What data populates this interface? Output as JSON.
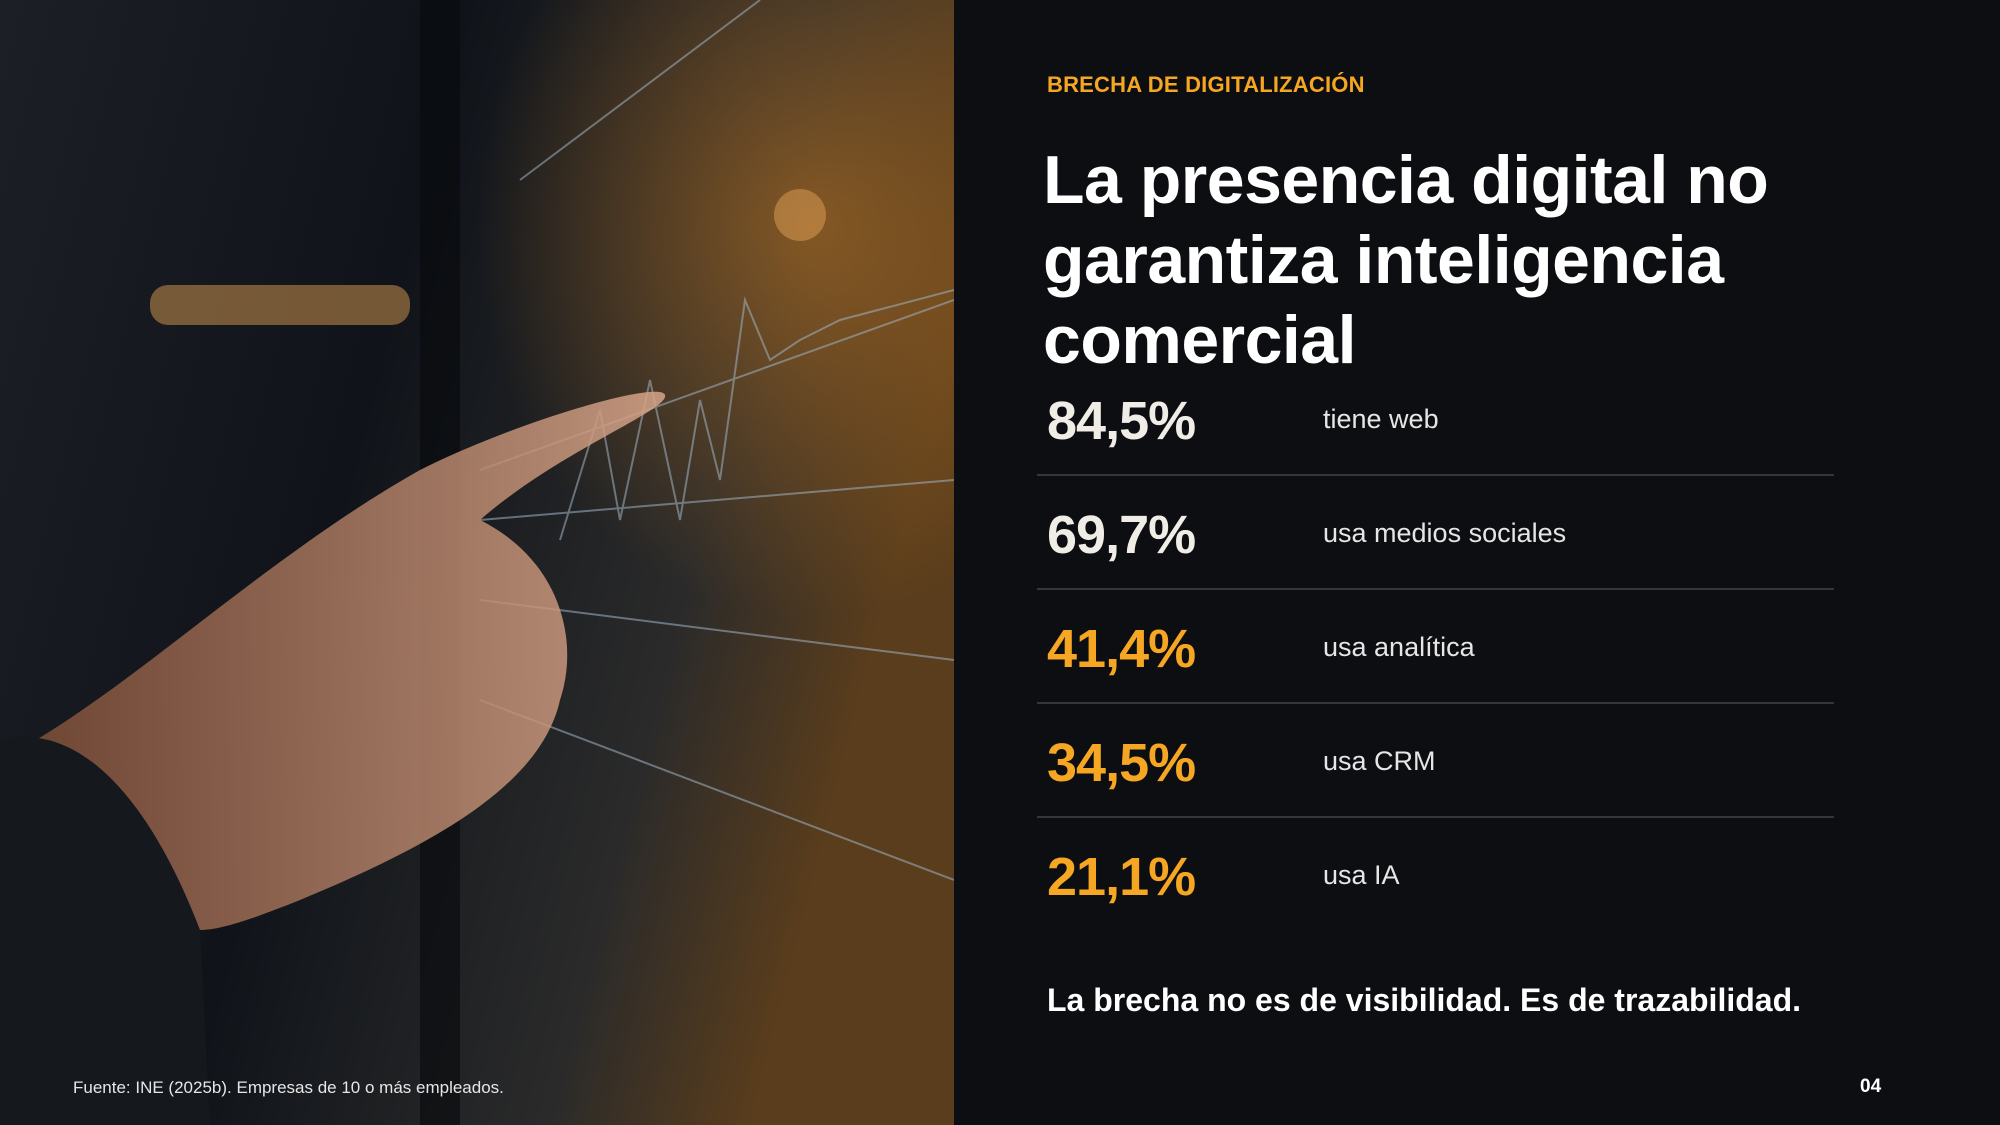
{
  "header": {
    "eyebrow": "BRECHA DE DIGITALIZACIÓN",
    "title": "La presencia digital no garantiza inteligencia comercial"
  },
  "stats": [
    {
      "value": "84,5%",
      "label": "tiene web",
      "highlight": false
    },
    {
      "value": "69,7%",
      "label": "usa medios sociales",
      "highlight": false
    },
    {
      "value": "41,4%",
      "label": "usa analítica",
      "highlight": true
    },
    {
      "value": "34,5%",
      "label": "usa CRM",
      "highlight": true
    },
    {
      "value": "21,1%",
      "label": "usa IA",
      "highlight": true
    }
  ],
  "conclusion": "La brecha no es de visibilidad. Es de trazabilidad.",
  "footer": {
    "source": "Fuente: INE (2025b). Empresas de 10 o más empleados.",
    "page": "04"
  }
}
